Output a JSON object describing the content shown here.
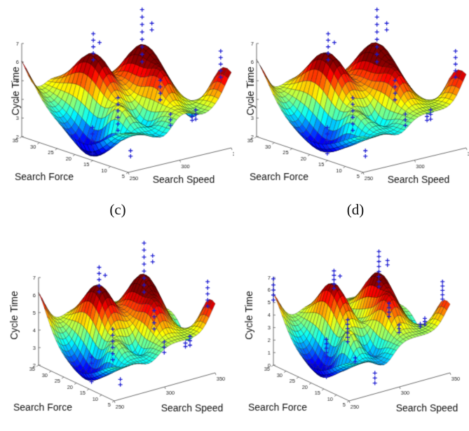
{
  "page": {
    "background": "#ffffff"
  },
  "captions": [
    {
      "text": "(c)"
    },
    {
      "text": "(d)"
    }
  ],
  "chart_data": {
    "type": "surface",
    "description": "Four 3D fitted response surfaces of robotic assembly Cycle Time versus Search Speed and Search Force, rendered with a jet colormap mesh; blue + markers show the experimental data points above each surface. Top two subplots are labelled (c) and (d); the bottom two subplots' captions are cropped out of the screenshot.",
    "shared": {
      "xlabel": "Search Speed",
      "ylabel": "Search Force",
      "zlabel": "Cycle Time",
      "x_range": [
        250,
        350
      ],
      "y_range": [
        5,
        35
      ],
      "x_ticks": [
        250,
        300,
        350
      ],
      "y_ticks": [
        5,
        10,
        15,
        20,
        25,
        30,
        35
      ],
      "colormap": "jet",
      "marker": {
        "glyph": "+",
        "color": "#1b1bd1"
      },
      "axis_color": "#444444",
      "scatter_clusters": [
        {
          "speed": 285,
          "force": 25,
          "cycle_times": [
            6.3,
            6.65,
            7.0,
            7.35,
            7.7
          ]
        },
        {
          "speed": 291,
          "force": 25,
          "cycle_times": [
            7.15
          ]
        },
        {
          "speed": 322,
          "force": 22,
          "cycle_times": [
            5.9,
            6.3,
            6.7,
            7.1,
            7.5,
            7.9,
            8.3,
            8.7
          ]
        },
        {
          "speed": 328,
          "force": 21,
          "cycle_times": [
            7.6,
            7.95
          ]
        },
        {
          "speed": 271,
          "force": 14,
          "cycle_times": [
            3.4,
            3.75,
            4.1,
            4.45,
            4.8,
            5.15
          ]
        },
        {
          "speed": 312,
          "force": 14,
          "cycle_times": [
            4.5,
            4.85,
            5.2,
            5.55
          ]
        },
        {
          "speed": 260,
          "force": 18,
          "cycle_times": [
            2.05,
            2.4,
            2.75,
            3.1,
            3.45
          ]
        },
        {
          "speed": 350,
          "force": 8,
          "cycle_times": [
            5.6,
            5.95,
            6.3,
            6.65,
            7.0
          ]
        },
        {
          "speed": 350,
          "force": 15,
          "cycle_times": [
            2.9,
            3.15,
            3.4
          ]
        },
        {
          "speed": 343,
          "force": 14,
          "cycle_times": [
            3.0,
            3.2
          ]
        },
        {
          "speed": 322,
          "force": 14,
          "cycle_times": [
            3.0,
            3.3,
            3.6
          ]
        },
        {
          "speed": 266,
          "force": 9,
          "cycle_times": [
            2.4,
            2.7
          ]
        }
      ]
    },
    "plots": [
      {
        "position": "top-left",
        "caption_shown": "(c)",
        "z_range": [
          2,
          7
        ],
        "z_ticks": [
          2,
          3,
          4,
          5,
          6,
          7
        ],
        "color_range": [
          2.0,
          6.2
        ],
        "surface_model": {
          "base": 4.35,
          "ripple": {
            "amp": 0.22,
            "fu": 2.3,
            "fv": 1.6,
            "pu": 0.6,
            "pv": 0.9
          },
          "bumps": [
            [
              0.1,
              0.45,
              -2.3,
              0.11,
              0.26
            ],
            [
              0.35,
              0.68,
              2.45,
              0.095,
              0.15
            ],
            [
              0.72,
              0.57,
              2.55,
              0.095,
              0.15
            ],
            [
              0.21,
              0.31,
              1.15,
              0.055,
              0.085
            ],
            [
              0.62,
              0.3,
              1.35,
              0.065,
              0.095
            ],
            [
              0.42,
              0.27,
              -1.05,
              0.06,
              0.09
            ],
            [
              1.06,
              0.08,
              2.2,
              0.1,
              0.16
            ],
            [
              1.0,
              0.32,
              -1.7,
              0.09,
              0.11
            ],
            [
              -0.05,
              1.06,
              2.4,
              0.11,
              0.15
            ],
            [
              0.35,
              0.02,
              -0.7,
              0.09,
              0.1
            ]
          ]
        },
        "extra_scatter": []
      },
      {
        "position": "top-right",
        "caption_shown": "(d)",
        "z_range": [
          2,
          7
        ],
        "z_ticks": [
          2,
          3,
          4,
          5,
          6,
          7
        ],
        "color_range": [
          2.0,
          6.2
        ],
        "surface_model": {
          "base": 4.35,
          "bumps": [
            [
              0.1,
              0.45,
              -2.3,
              0.12,
              0.27
            ],
            [
              0.35,
              0.68,
              2.45,
              0.1,
              0.16
            ],
            [
              0.72,
              0.57,
              2.55,
              0.1,
              0.16
            ],
            [
              0.21,
              0.31,
              1.05,
              0.06,
              0.09
            ],
            [
              0.62,
              0.3,
              1.3,
              0.07,
              0.1
            ],
            [
              0.42,
              0.27,
              -1.05,
              0.06,
              0.09
            ],
            [
              1.06,
              0.08,
              2.2,
              0.1,
              0.16
            ],
            [
              1.0,
              0.32,
              -1.7,
              0.09,
              0.11
            ],
            [
              -0.05,
              1.06,
              2.4,
              0.11,
              0.15
            ],
            [
              0.35,
              0.02,
              -0.7,
              0.09,
              0.1
            ]
          ]
        },
        "extra_scatter": []
      },
      {
        "position": "bottom-left",
        "z_range": [
          2,
          7
        ],
        "z_ticks": [
          2,
          3,
          4,
          5,
          6,
          7
        ],
        "color_range": [
          2.0,
          6.2
        ],
        "surface_model": {
          "base": 4.35,
          "bumps": [
            [
              0.1,
              0.45,
              -2.3,
              0.12,
              0.27
            ],
            [
              0.35,
              0.68,
              2.45,
              0.1,
              0.16
            ],
            [
              0.72,
              0.57,
              2.55,
              0.1,
              0.16
            ],
            [
              0.21,
              0.31,
              1.1,
              0.06,
              0.09
            ],
            [
              0.62,
              0.3,
              1.3,
              0.07,
              0.1
            ],
            [
              0.42,
              0.27,
              -1.05,
              0.06,
              0.09
            ],
            [
              1.06,
              0.08,
              2.2,
              0.1,
              0.16
            ],
            [
              1.0,
              0.32,
              -1.7,
              0.09,
              0.11
            ],
            [
              -0.05,
              1.06,
              2.4,
              0.11,
              0.15
            ],
            [
              0.35,
              0.02,
              -0.7,
              0.09,
              0.1
            ]
          ]
        },
        "extra_scatter": []
      },
      {
        "position": "bottom-right",
        "z_range": [
          0,
          7
        ],
        "z_ticks": [
          0,
          1,
          2,
          3,
          4,
          5,
          6,
          7
        ],
        "color_range": [
          0.3,
          6.5
        ],
        "surface_model": {
          "base": 3.6,
          "bumps": [
            [
              0.1,
              0.45,
              -3.3,
              0.12,
              0.27
            ],
            [
              0.35,
              0.68,
              3.3,
              0.085,
              0.16
            ],
            [
              0.72,
              0.57,
              3.4,
              0.085,
              0.16
            ],
            [
              0.53,
              0.65,
              -0.9,
              0.06,
              0.12
            ],
            [
              0.21,
              0.31,
              2.3,
              0.06,
              0.09
            ],
            [
              0.62,
              0.3,
              2.1,
              0.07,
              0.1
            ],
            [
              0.42,
              0.27,
              -1.8,
              0.065,
              0.095
            ],
            [
              1.06,
              0.08,
              2.6,
              0.1,
              0.16
            ],
            [
              1.0,
              0.32,
              -2.0,
              0.09,
              0.11
            ],
            [
              -0.05,
              1.06,
              2.9,
              0.11,
              0.15
            ],
            [
              0.35,
              0.02,
              -1.4,
              0.09,
              0.11
            ]
          ]
        },
        "extra_scatter": [
          {
            "speed": 250,
            "force": 35,
            "cycle_times": [
              5.2,
              5.6,
              6.0,
              6.4,
              6.9
            ]
          },
          {
            "speed": 278,
            "force": 6,
            "cycle_times": [
              0.7,
              1.1,
              1.5
            ]
          },
          {
            "speed": 260,
            "force": 18,
            "cycle_times": [
              0.45,
              0.85,
              1.25
            ]
          }
        ]
      }
    ]
  }
}
